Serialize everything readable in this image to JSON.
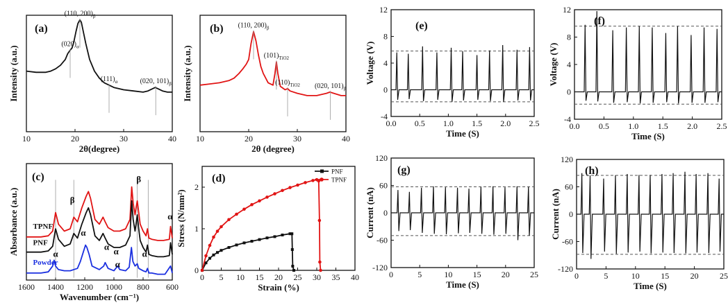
{
  "colors": {
    "black": "#111111",
    "red": "#e11414",
    "blue": "#1a2fe0",
    "dash": "#555555",
    "guide": "#999999"
  },
  "chart_data": [
    {
      "id": "a",
      "type": "line",
      "label": "(a)",
      "xlabel": "2θ(degree)",
      "ylabel": "Intensity (a.u.)",
      "xlim": [
        10,
        40
      ],
      "ylim": [
        0,
        100
      ],
      "xticks": [
        10,
        20,
        30,
        40
      ],
      "yticks": [],
      "series": [
        {
          "name": "PNF XRD",
          "color": "black",
          "x": [
            10,
            12,
            14,
            15,
            16,
            17,
            18,
            18.5,
            19,
            19.4,
            19.8,
            20.2,
            20.6,
            21.0,
            21.3,
            21.7,
            22.2,
            23,
            24,
            25,
            26,
            27,
            28,
            30,
            32,
            34,
            35,
            36,
            36.5,
            37,
            38,
            39,
            40
          ],
          "y": [
            52,
            51,
            51,
            52,
            54,
            57,
            62,
            67,
            70,
            72,
            78,
            86,
            93,
            96,
            94,
            86,
            76,
            62,
            52,
            46,
            42,
            40,
            38,
            36,
            35,
            34,
            35,
            37,
            38,
            37,
            35,
            34,
            34
          ]
        }
      ],
      "annotations": [
        {
          "text": "(020)",
          "sub": "α",
          "x": 19.0,
          "y": 70
        },
        {
          "text": "(110, 200)",
          "sub": "β",
          "x": 21.0,
          "y": 96
        },
        {
          "text": "(111)",
          "sub": "α",
          "x": 27.0,
          "y": 40
        },
        {
          "text": "(020, 101)",
          "sub": "β",
          "x": 36.6,
          "y": 38
        }
      ]
    },
    {
      "id": "b",
      "type": "line",
      "label": "(b)",
      "xlabel": "2θ (degree)",
      "ylabel": "Intensity (a.u.)",
      "xlim": [
        10,
        40
      ],
      "ylim": [
        0,
        100
      ],
      "xticks": [
        10,
        20,
        30,
        40
      ],
      "yticks": [],
      "series": [
        {
          "name": "TPNF XRD",
          "color": "red",
          "x": [
            10,
            12,
            14,
            16,
            17,
            18,
            18.8,
            19.5,
            20.0,
            20.5,
            21.0,
            21.5,
            22.0,
            22.5,
            23,
            24,
            25,
            25.4,
            25.7,
            26.0,
            26.5,
            27.5,
            28,
            28.5,
            30,
            32,
            34,
            36,
            36.7,
            37.5,
            39,
            40
          ],
          "y": [
            40,
            41,
            42,
            44,
            46,
            50,
            54,
            58,
            62,
            76,
            86,
            78,
            66,
            56,
            50,
            42,
            40,
            50,
            60,
            50,
            39,
            36,
            37,
            35,
            33,
            31,
            31,
            33,
            34,
            33,
            31,
            31
          ]
        }
      ],
      "annotations": [
        {
          "text": "(110, 200)",
          "sub": "β",
          "x": 21.0,
          "y": 86
        },
        {
          "text": "(101)",
          "sub": "TiO2",
          "x": 25.7,
          "y": 60
        },
        {
          "text": "(110)",
          "sub": "TiO2",
          "x": 28.0,
          "y": 37
        },
        {
          "text": "(020, 101)",
          "sub": "β",
          "x": 36.8,
          "y": 34
        }
      ]
    },
    {
      "id": "c",
      "type": "line",
      "label": "(c)",
      "xlabel": "Wavenumber (cm⁻¹)",
      "ylabel": "Absorbance (a.u.)",
      "xlim": [
        1600,
        600
      ],
      "ylim": [
        0,
        100
      ],
      "xticks": [
        1600,
        1400,
        1200,
        1000,
        800,
        600
      ],
      "yticks": [],
      "series": [
        {
          "name": "TPNF",
          "color": "red",
          "x": [
            1600,
            1500,
            1450,
            1420,
            1400,
            1380,
            1340,
            1300,
            1275,
            1250,
            1220,
            1190,
            1175,
            1160,
            1130,
            1100,
            1075,
            1060,
            1040,
            1000,
            960,
            920,
            890,
            878,
            868,
            855,
            848,
            840,
            830,
            820,
            800,
            780,
            770,
            760,
            740,
            700,
            660,
            620,
            612,
            600
          ],
          "y": [
            37,
            37,
            38,
            42,
            58,
            48,
            42,
            44,
            54,
            50,
            62,
            72,
            76,
            70,
            52,
            48,
            54,
            50,
            45,
            42,
            42,
            44,
            52,
            80,
            66,
            56,
            62,
            68,
            58,
            48,
            42,
            38,
            44,
            36,
            35,
            34,
            34,
            35,
            46,
            36
          ]
        },
        {
          "name": "PNF",
          "color": "black",
          "x": [
            1600,
            1500,
            1450,
            1420,
            1400,
            1380,
            1340,
            1300,
            1275,
            1250,
            1220,
            1190,
            1175,
            1160,
            1130,
            1100,
            1075,
            1060,
            1040,
            1000,
            960,
            920,
            890,
            878,
            868,
            855,
            848,
            840,
            830,
            820,
            800,
            780,
            770,
            760,
            740,
            700,
            660,
            620,
            612,
            600
          ],
          "y": [
            24,
            24,
            25,
            29,
            44,
            35,
            29,
            31,
            40,
            36,
            48,
            58,
            62,
            56,
            38,
            34,
            40,
            36,
            31,
            28,
            28,
            30,
            38,
            68,
            52,
            42,
            48,
            56,
            44,
            34,
            28,
            24,
            30,
            22,
            21,
            20,
            20,
            21,
            32,
            22
          ]
        },
        {
          "name": "Powder",
          "color": "blue",
          "x": [
            1600,
            1500,
            1450,
            1420,
            1410,
            1400,
            1380,
            1340,
            1300,
            1250,
            1230,
            1210,
            1195,
            1185,
            1170,
            1150,
            1100,
            1070,
            1060,
            1040,
            1000,
            975,
            960,
            920,
            895,
            880,
            870,
            855,
            840,
            830,
            800,
            780,
            770,
            760,
            740,
            700,
            650,
            612,
            600
          ],
          "y": [
            6,
            6,
            7,
            12,
            17,
            12,
            9,
            8,
            8,
            10,
            16,
            24,
            30,
            28,
            22,
            12,
            9,
            12,
            15,
            10,
            8,
            12,
            9,
            8,
            11,
            28,
            16,
            12,
            14,
            10,
            8,
            7,
            10,
            6,
            6,
            5,
            5,
            12,
            6
          ]
        }
      ],
      "curve_labels": [
        {
          "text": "TPNF",
          "x": 1555,
          "y": 44,
          "color": "black"
        },
        {
          "text": "PNF",
          "x": 1555,
          "y": 30,
          "color": "black"
        },
        {
          "text": "Powder",
          "x": 1555,
          "y": 13,
          "color": "blue"
        }
      ],
      "guides": [
        1400,
        1275,
        840,
        765
      ],
      "annotations": [
        {
          "text": "β",
          "x": 1285,
          "y": 66
        },
        {
          "text": "β",
          "x": 830,
          "y": 84
        },
        {
          "text": "α",
          "x": 1400,
          "y": 20
        },
        {
          "text": "α",
          "x": 1210,
          "y": 38
        },
        {
          "text": "α",
          "x": 1050,
          "y": 26
        },
        {
          "text": "α",
          "x": 985,
          "y": 22
        },
        {
          "text": "α",
          "x": 975,
          "y": 11
        },
        {
          "text": "α",
          "x": 790,
          "y": 20
        },
        {
          "text": "α",
          "x": 615,
          "y": 52
        }
      ]
    },
    {
      "id": "d",
      "type": "line",
      "label": "(d)",
      "xlabel": "Strain (%)",
      "ylabel": "Stress (N/mm²)",
      "xlim": [
        0,
        40
      ],
      "ylim": [
        0,
        2.5
      ],
      "xticks": [
        0,
        5,
        10,
        15,
        20,
        25,
        30,
        35,
        40
      ],
      "yticks": [
        0,
        1,
        2
      ],
      "legend": "top-right",
      "series": [
        {
          "name": "PNF",
          "color": "black",
          "marker": "square",
          "x": [
            0,
            1,
            2,
            3,
            4,
            5,
            7,
            9,
            11,
            13,
            15,
            17,
            19,
            21,
            23,
            23.5,
            23.6,
            23.7,
            24
          ],
          "y": [
            0,
            0.18,
            0.29,
            0.37,
            0.43,
            0.48,
            0.55,
            0.61,
            0.66,
            0.7,
            0.74,
            0.78,
            0.81,
            0.85,
            0.88,
            0.88,
            0.5,
            0.1,
            0.0
          ]
        },
        {
          "name": "TPNF",
          "color": "red",
          "marker": "circle",
          "x": [
            0,
            1,
            2,
            3,
            4,
            5,
            7,
            9,
            11,
            13,
            15,
            17,
            19,
            21,
            23,
            25,
            27,
            29,
            30,
            30.5,
            30.7,
            30.8,
            31
          ],
          "y": [
            0,
            0.35,
            0.6,
            0.8,
            0.94,
            1.05,
            1.22,
            1.35,
            1.47,
            1.58,
            1.67,
            1.76,
            1.84,
            1.92,
            1.99,
            2.05,
            2.11,
            2.16,
            2.18,
            2.15,
            1.2,
            0.2,
            0.0
          ]
        }
      ]
    },
    {
      "id": "e",
      "type": "line",
      "label": "(e)",
      "xlabel": "Time (S)",
      "ylabel": "Voltage (V)",
      "xlim": [
        0,
        2.5
      ],
      "ylim": [
        -4,
        12
      ],
      "xticks": [
        0.0,
        0.5,
        1.0,
        1.5,
        2.0,
        2.5
      ],
      "yticks": [
        -4,
        0,
        4,
        8,
        12
      ],
      "refs": [
        5.8,
        -1.8
      ],
      "pulse_train": {
        "color": "black",
        "baseline": 0,
        "times": [
          0.1,
          0.3,
          0.55,
          0.8,
          1.05,
          1.25,
          1.5,
          1.72,
          1.95,
          2.2,
          2.42
        ],
        "peaks": [
          5.6,
          5.4,
          6.5,
          5.6,
          6.3,
          5.8,
          5.2,
          5.9,
          6.7,
          6.0,
          6.4
        ],
        "troughs": [
          -1.5,
          -1.4,
          -1.7,
          -1.5,
          -1.8,
          -1.6,
          -1.5,
          -1.7,
          -1.8,
          -1.6,
          -1.6
        ]
      }
    },
    {
      "id": "f",
      "type": "line",
      "label": "(f)",
      "xlabel": "Time (S)",
      "ylabel": "Voltage (V)",
      "xlim": [
        0,
        2.5
      ],
      "ylim": [
        -4,
        12
      ],
      "xticks": [
        0.0,
        0.5,
        1.0,
        1.5,
        2.0,
        2.5
      ],
      "yticks": [
        -4,
        0,
        4,
        8,
        12
      ],
      "refs": [
        9.6,
        -1.8
      ],
      "pulse_train": {
        "color": "black",
        "baseline": 0,
        "times": [
          0.18,
          0.38,
          0.65,
          0.88,
          1.1,
          1.32,
          1.55,
          1.75,
          1.98,
          2.2,
          2.42
        ],
        "peaks": [
          9.8,
          11.8,
          9.0,
          9.4,
          9.6,
          9.4,
          8.6,
          9.6,
          8.3,
          9.4,
          9.2
        ],
        "troughs": [
          -1.3,
          -1.4,
          -1.6,
          -1.5,
          -1.7,
          -1.6,
          -1.5,
          -1.7,
          -1.6,
          -1.6,
          -1.5
        ]
      }
    },
    {
      "id": "g",
      "type": "line",
      "label": "(g)",
      "xlabel": "Time (S)",
      "ylabel": "Current (nA)",
      "xlim": [
        0,
        25
      ],
      "ylim": [
        -120,
        120
      ],
      "xticks": [
        0,
        5,
        10,
        15,
        20,
        25
      ],
      "yticks": [
        -120,
        -60,
        0,
        60,
        120
      ],
      "refs": [
        57,
        -50
      ],
      "pulse_train": {
        "color": "black",
        "baseline": 0,
        "times": [
          1.2,
          3.2,
          5.3,
          7.4,
          9.5,
          11.6,
          13.6,
          15.7,
          17.8,
          19.9,
          22.0,
          24.0
        ],
        "peaks": [
          50,
          46,
          55,
          58,
          56,
          55,
          53,
          57,
          58,
          56,
          58,
          57
        ],
        "troughs": [
          -40,
          -38,
          -44,
          -46,
          -47,
          -45,
          -44,
          -46,
          -48,
          -46,
          -60,
          -50
        ]
      }
    },
    {
      "id": "h",
      "type": "line",
      "label": "(h)",
      "xlabel": "Time (S)",
      "ylabel": "Current (nA)",
      "xlim": [
        0,
        25
      ],
      "ylim": [
        -120,
        120
      ],
      "xticks": [
        0,
        5,
        10,
        15,
        20,
        25
      ],
      "yticks": [
        -120,
        -60,
        0,
        60,
        120
      ],
      "refs": [
        85,
        -88
      ],
      "pulse_train": {
        "color": "black",
        "baseline": 0,
        "times": [
          0.9,
          2.3,
          4.6,
          6.6,
          8.6,
          10.6,
          12.5,
          14.5,
          16.4,
          18.4,
          20.3,
          22.3,
          24.2
        ],
        "peaks": [
          90,
          85,
          78,
          85,
          88,
          86,
          86,
          88,
          90,
          93,
          88,
          90,
          78
        ],
        "troughs": [
          -85,
          -98,
          -82,
          -87,
          -84,
          -82,
          -86,
          -84,
          -85,
          -86,
          -84,
          -85,
          -82
        ]
      }
    }
  ]
}
